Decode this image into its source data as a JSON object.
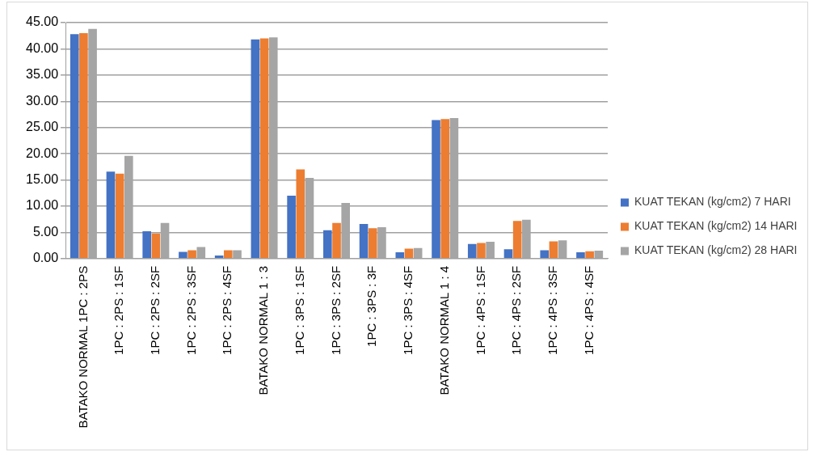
{
  "chart_data": {
    "type": "bar",
    "categories": [
      "BATAKO NORMAL 1PC : 2PS",
      "1PC : 2PS : 1SF",
      "1PC : 2PS : 2SF",
      "1PC : 2PS : 3SF",
      "1PC : 2PS : 4SF",
      "BATAKO NORMAL 1 : 3",
      "1PC : 3PS : 1SF",
      "1PC : 3PS : 2SF",
      "1PC : 3PS : 3F",
      "1PC : 3PS : 4SF",
      "BATAKO NORMAL 1 : 4",
      "1PC : 4PS : 1SF",
      "1PC : 4PS : 2SF",
      "1PC : 4PS : 3SF",
      "1PC : 4PS : 4SF"
    ],
    "series": [
      {
        "name": "KUAT TEKAN (kg/cm2) 7 HARI",
        "color": "#4472c4",
        "values": [
          42.8,
          16.6,
          5.2,
          1.3,
          0.6,
          41.8,
          12.0,
          5.4,
          6.6,
          1.2,
          26.4,
          2.8,
          1.8,
          1.6,
          1.2
        ]
      },
      {
        "name": "KUAT TEKAN (kg/cm2) 14 HARI",
        "color": "#ed7d31",
        "values": [
          43.0,
          16.2,
          4.8,
          1.6,
          1.6,
          42.0,
          17.0,
          6.8,
          5.8,
          1.9,
          26.6,
          3.0,
          7.2,
          3.3,
          1.4
        ]
      },
      {
        "name": "KUAT TEKAN (kg/cm2) 28 HARI",
        "color": "#a5a5a5",
        "values": [
          43.8,
          19.6,
          6.8,
          2.2,
          1.6,
          42.2,
          15.4,
          10.6,
          6.0,
          2.0,
          26.8,
          3.2,
          7.4,
          3.5,
          1.5
        ]
      }
    ],
    "ylim": [
      0,
      45
    ],
    "yticks": [
      {
        "value": 0,
        "label": "0.00"
      },
      {
        "value": 5,
        "label": "5.00"
      },
      {
        "value": 10,
        "label": "10.00"
      },
      {
        "value": 15,
        "label": "15.00"
      },
      {
        "value": 20,
        "label": "20.00"
      },
      {
        "value": 25,
        "label": "25.00"
      },
      {
        "value": 30,
        "label": "30.00"
      },
      {
        "value": 35,
        "label": "35.00"
      },
      {
        "value": 40,
        "label": "40.00"
      },
      {
        "value": 45,
        "label": "45.00"
      }
    ],
    "grid": "y",
    "legend": "right"
  }
}
